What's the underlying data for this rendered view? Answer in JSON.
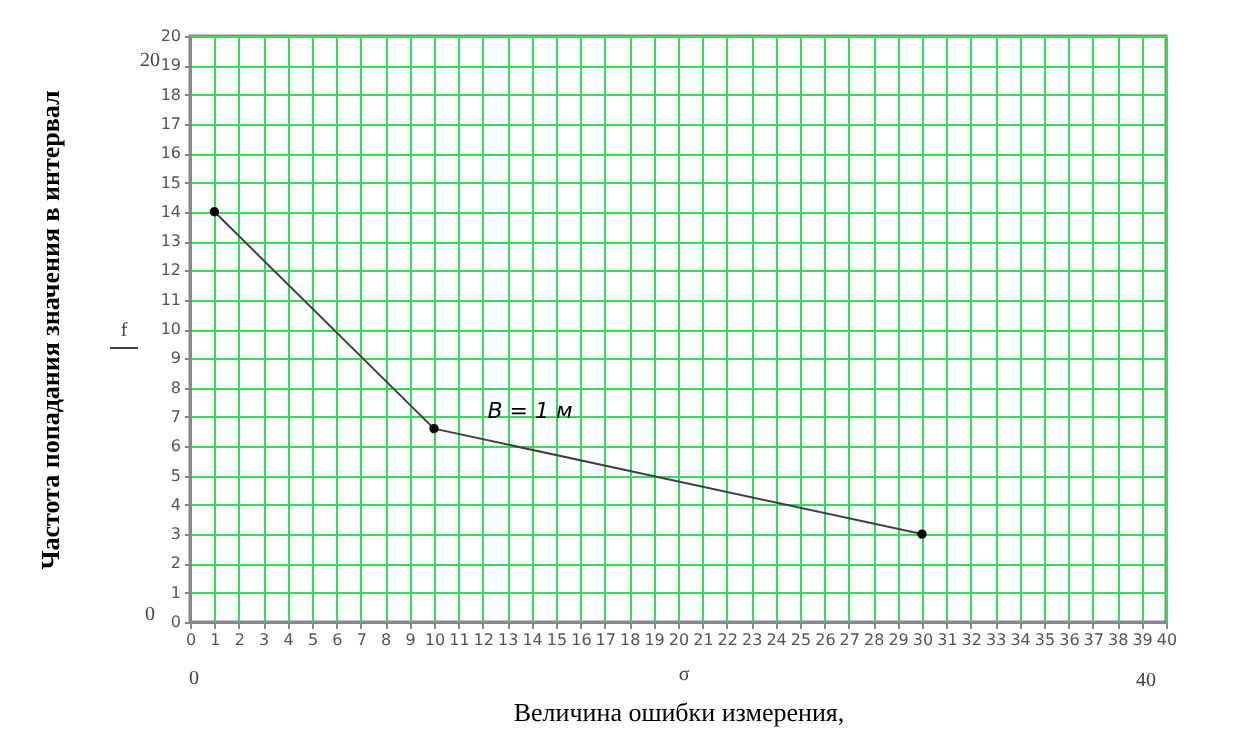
{
  "chart_data": {
    "type": "line",
    "xlabel": "Величина ошибки измерения,",
    "ylabel": "Частота попадания значения в интервал",
    "x": [
      1,
      10,
      30
    ],
    "series": [
      {
        "color": "#404040",
        "values": [
          14,
          6.6,
          3
        ]
      }
    ],
    "xlim": [
      0,
      40
    ],
    "ylim": [
      0,
      20
    ],
    "xticks": [
      0,
      1,
      2,
      3,
      4,
      5,
      6,
      7,
      8,
      9,
      10,
      11,
      12,
      13,
      14,
      15,
      16,
      17,
      18,
      19,
      20,
      21,
      22,
      23,
      24,
      25,
      26,
      27,
      28,
      29,
      30,
      31,
      32,
      33,
      34,
      35,
      36,
      37,
      38,
      39,
      40
    ],
    "yticks": [
      0,
      1,
      2,
      3,
      4,
      5,
      6,
      7,
      8,
      9,
      10,
      11,
      12,
      13,
      14,
      15,
      16,
      17,
      18,
      19,
      20
    ],
    "grid": true,
    "marker": "circle",
    "line_style": "solid",
    "annotations": [
      "B = 1 м",
      "20",
      "f",
      "0",
      "0",
      "σ",
      "40"
    ]
  }
}
